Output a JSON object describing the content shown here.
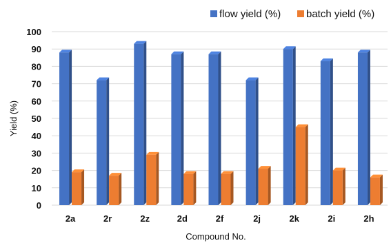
{
  "chart_data": {
    "type": "bar",
    "title": "",
    "xlabel": "Compound No.",
    "ylabel": "Yield (%)",
    "ylim": [
      0,
      100
    ],
    "yticks": [
      0,
      10,
      20,
      30,
      40,
      50,
      60,
      70,
      80,
      90,
      100
    ],
    "grid": "horizontal",
    "legend_position": "top-right",
    "categories": [
      "2a",
      "2r",
      "2z",
      "2d",
      "2f",
      "2j",
      "2k",
      "2i",
      "2h"
    ],
    "series": [
      {
        "name": "flow yield (%)",
        "color": "#4472C4",
        "values": [
          88,
          72,
          93,
          87,
          87,
          72,
          90,
          83,
          88
        ]
      },
      {
        "name": "batch yield (%)",
        "color": "#ED7D31",
        "values": [
          19,
          17,
          29,
          18,
          18,
          21,
          45,
          20,
          16
        ]
      }
    ]
  }
}
